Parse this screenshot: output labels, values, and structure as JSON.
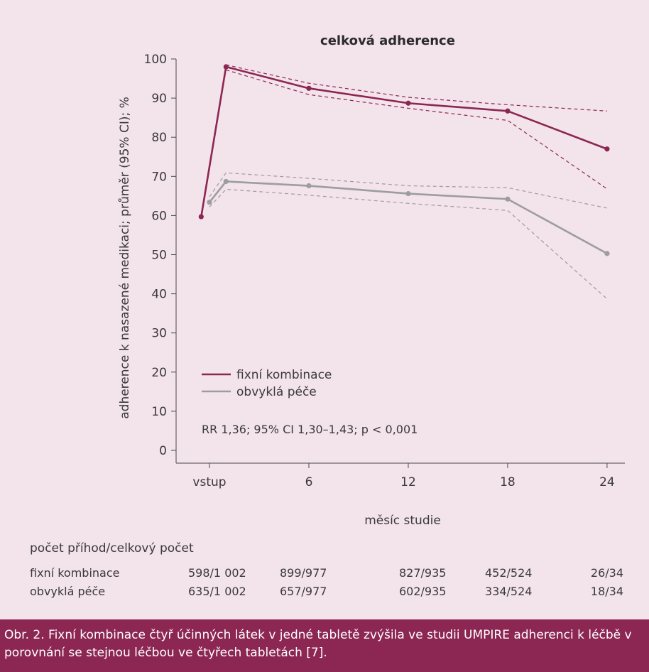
{
  "chart_data": {
    "type": "line",
    "title": "celková adherence",
    "ylabel": "adherence k nasazené medikaci; průměr (95% CI); %",
    "xlabel": "měsíc studie",
    "x_ticks": [
      "vstup",
      "6",
      "12",
      "18",
      "24"
    ],
    "y_ticks": [
      "0",
      "10",
      "20",
      "30",
      "40",
      "50",
      "60",
      "70",
      "80",
      "90",
      "100"
    ],
    "ylim": [
      0,
      100
    ],
    "legend_position": "bottom-left",
    "annotation": "RR 1,36; 95% CI 1,30–1,43; p < 0,001",
    "series": [
      {
        "name": "fixní kombinace",
        "color": "#8c2653",
        "points": [
          [
            -0.5,
            59.7
          ],
          [
            1,
            98
          ],
          [
            6,
            92.5
          ],
          [
            12,
            88.7
          ],
          [
            18,
            86.7
          ],
          [
            24,
            77
          ]
        ],
        "ci_upper": [
          [
            1,
            98.5
          ],
          [
            6,
            93.8
          ],
          [
            12,
            90.2
          ],
          [
            18,
            88.3
          ],
          [
            24,
            86.7
          ]
        ],
        "ci_lower": [
          [
            1,
            97.2
          ],
          [
            6,
            90.9
          ],
          [
            12,
            87.4
          ],
          [
            18,
            84.3
          ],
          [
            24,
            66.8
          ]
        ]
      },
      {
        "name": "obvyklá péče",
        "color": "#9d9d9d",
        "points": [
          [
            0,
            63.4
          ],
          [
            1,
            68.7
          ],
          [
            6,
            67.6
          ],
          [
            12,
            65.6
          ],
          [
            18,
            64.2
          ],
          [
            24,
            50.3
          ]
        ],
        "ci_upper": [
          [
            0,
            64.8
          ],
          [
            1,
            70.9
          ],
          [
            6,
            69.5
          ],
          [
            12,
            67.6
          ],
          [
            18,
            67.1
          ],
          [
            24,
            61.9
          ]
        ],
        "ci_lower": [
          [
            0,
            62.2
          ],
          [
            1,
            66.7
          ],
          [
            6,
            65.2
          ],
          [
            12,
            63.1
          ],
          [
            18,
            61.3
          ],
          [
            24,
            38.7
          ]
        ]
      }
    ]
  },
  "table": {
    "title": "počet příhod/celkový počet",
    "rows": [
      {
        "label": "fixní kombinace",
        "values": [
          "598/1 002",
          "899/977",
          "827/935",
          "452/524",
          "26/34"
        ]
      },
      {
        "label": "obvyklá péče",
        "values": [
          "635/1 002",
          "657/977",
          "602/935",
          "334/524",
          "18/34"
        ]
      }
    ]
  },
  "caption": "Obr. 2. Fixní kombinace čtyř účinných látek v jedné tabletě zvýšila ve studii UMPIRE adherenci k léčbě v porovnání se stejnou léčbou ve čtyřech tabletách [7]."
}
